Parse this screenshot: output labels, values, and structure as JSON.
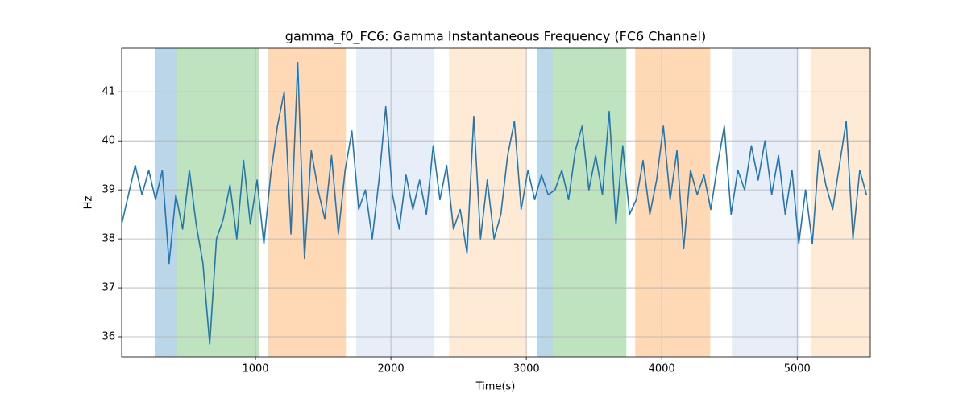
{
  "chart_data": {
    "type": "line",
    "title": "gamma_f0_FC6: Gamma Instantaneous Frequency (FC6 Channel)",
    "x_label": "Time(s)",
    "y_label": "Hz",
    "xlim": [
      12,
      5540
    ],
    "ylim": [
      35.59,
      41.89
    ],
    "xticks": [
      1000,
      2000,
      3000,
      4000,
      5000
    ],
    "yticks": [
      36,
      37,
      38,
      39,
      40,
      41
    ],
    "grid": true,
    "spans": [
      {
        "start": 256,
        "end": 423,
        "color": "#1f77b4"
      },
      {
        "start": 423,
        "end": 1024,
        "color": "#2ca02c"
      },
      {
        "start": 1095,
        "end": 1667,
        "color": "#ff7f0e"
      },
      {
        "start": 1744,
        "end": 2321,
        "color": "#aec7e8"
      },
      {
        "start": 2429,
        "end": 3000,
        "color": "#ffbb78"
      },
      {
        "start": 3077,
        "end": 3196,
        "color": "#1f77b4"
      },
      {
        "start": 3196,
        "end": 3738,
        "color": "#2ca02c"
      },
      {
        "start": 3804,
        "end": 4357,
        "color": "#ff7f0e"
      },
      {
        "start": 4518,
        "end": 5018,
        "color": "#aec7e8"
      },
      {
        "start": 5101,
        "end": 5542,
        "color": "#ffbb78"
      }
    ],
    "span_alpha": 0.3,
    "x": [
      12,
      62,
      112,
      162,
      212,
      262,
      312,
      362,
      412,
      462,
      512,
      562,
      612,
      662,
      712,
      762,
      812,
      862,
      912,
      962,
      1012,
      1062,
      1112,
      1162,
      1212,
      1262,
      1312,
      1362,
      1412,
      1462,
      1512,
      1562,
      1612,
      1662,
      1712,
      1762,
      1812,
      1862,
      1912,
      1962,
      2012,
      2062,
      2112,
      2162,
      2212,
      2262,
      2312,
      2362,
      2412,
      2462,
      2512,
      2562,
      2612,
      2662,
      2712,
      2762,
      2812,
      2862,
      2912,
      2962,
      3012,
      3062,
      3112,
      3162,
      3212,
      3262,
      3312,
      3362,
      3412,
      3462,
      3512,
      3562,
      3612,
      3662,
      3712,
      3762,
      3812,
      3862,
      3912,
      3962,
      4012,
      4062,
      4112,
      4162,
      4212,
      4262,
      4312,
      4362,
      4412,
      4462,
      4512,
      4562,
      4612,
      4662,
      4712,
      4762,
      4812,
      4862,
      4912,
      4962,
      5012,
      5062,
      5112,
      5162,
      5212,
      5262,
      5312,
      5362,
      5412,
      5462,
      5512
    ],
    "series": [
      {
        "color": "#1f77b4",
        "values": [
          38.3,
          38.9,
          39.5,
          38.9,
          39.4,
          38.8,
          39.4,
          37.5,
          38.9,
          38.2,
          39.4,
          38.3,
          37.5,
          35.85,
          38.0,
          38.4,
          39.1,
          38.0,
          39.6,
          38.3,
          39.2,
          37.9,
          39.3,
          40.3,
          41.0,
          38.1,
          41.6,
          37.6,
          39.8,
          39.0,
          38.4,
          39.7,
          38.1,
          39.4,
          40.2,
          38.6,
          39.0,
          38.0,
          39.2,
          40.7,
          38.9,
          38.2,
          39.3,
          38.6,
          39.2,
          38.5,
          39.9,
          38.8,
          39.5,
          38.2,
          38.6,
          37.7,
          40.5,
          38.0,
          39.2,
          38.0,
          38.5,
          39.7,
          40.4,
          38.6,
          39.4,
          38.8,
          39.3,
          38.9,
          39.0,
          39.4,
          38.8,
          39.8,
          40.3,
          39.0,
          39.7,
          38.9,
          40.6,
          38.3,
          39.9,
          38.5,
          38.8,
          39.6,
          38.5,
          39.2,
          40.3,
          38.8,
          39.8,
          37.8,
          39.4,
          38.9,
          39.3,
          38.6,
          39.5,
          40.3,
          38.5,
          39.4,
          39.0,
          39.9,
          39.2,
          40.0,
          38.9,
          39.7,
          38.5,
          39.4,
          37.9,
          39.0,
          37.9,
          39.8,
          39.1,
          38.6,
          39.5,
          40.4,
          38.0,
          39.4,
          38.9
        ]
      }
    ]
  }
}
